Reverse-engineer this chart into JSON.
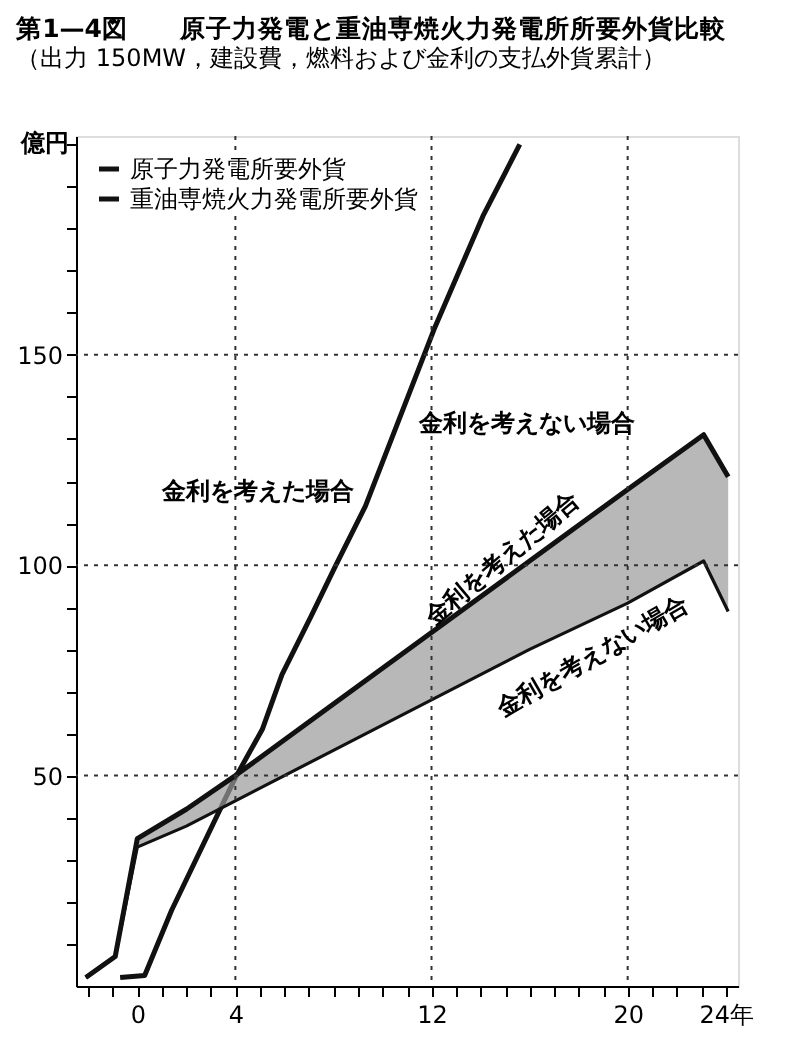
{
  "chart_data": {
    "type": "line",
    "title": "第1—4図　　原子力発電と重油専焼火力発電所所要外貨比較",
    "subtitle": "（出力 150MW，建設費，燃料および金利の支払外貨累計）",
    "ylabel": "億円",
    "xlim": [
      -2.5,
      24.5
    ],
    "ylim": [
      0,
      202
    ],
    "xticks": [
      {
        "value": -2,
        "label": null
      },
      {
        "value": -1,
        "label": null
      },
      0,
      {
        "value": 1,
        "label": null
      },
      {
        "value": 2,
        "label": null
      },
      {
        "value": 3,
        "label": null
      },
      4,
      {
        "value": 5,
        "label": null
      },
      {
        "value": 6,
        "label": null
      },
      {
        "value": 7,
        "label": null
      },
      {
        "value": 8,
        "label": null
      },
      {
        "value": 9,
        "label": null
      },
      {
        "value": 10,
        "label": null
      },
      {
        "value": 11,
        "label": null
      },
      12,
      {
        "value": 13,
        "label": null
      },
      {
        "value": 14,
        "label": null
      },
      {
        "value": 15,
        "label": null
      },
      {
        "value": 16,
        "label": null
      },
      {
        "value": 17,
        "label": null
      },
      {
        "value": 18,
        "label": null
      },
      {
        "value": 19,
        "label": null
      },
      20,
      {
        "value": 21,
        "label": null
      },
      {
        "value": 22,
        "label": null
      },
      {
        "value": 23,
        "label": null
      },
      {
        "value": 24,
        "label": "24年"
      }
    ],
    "yticks": [
      {
        "value": 10,
        "label": null
      },
      {
        "value": 20,
        "label": null
      },
      {
        "value": 30,
        "label": null
      },
      {
        "value": 40,
        "label": null
      },
      50,
      {
        "value": 60,
        "label": null
      },
      {
        "value": 70,
        "label": null
      },
      {
        "value": 80,
        "label": null
      },
      {
        "value": 90,
        "label": null
      },
      100,
      {
        "value": 110,
        "label": null
      },
      {
        "value": 120,
        "label": null
      },
      {
        "value": 130,
        "label": null
      },
      {
        "value": 140,
        "label": null
      },
      150,
      {
        "value": 160,
        "label": null
      },
      {
        "value": 170,
        "label": null
      },
      {
        "value": 180,
        "label": null
      },
      {
        "value": 190,
        "label": null
      },
      {
        "value": 200,
        "label": null
      }
    ],
    "series": [
      {
        "name": "原子力発電所要外貨",
        "color": "#111111",
        "x": [
          -0.7,
          0.3,
          1.4,
          4,
          5.1,
          5.9,
          7.1,
          8.1,
          9.3,
          12.1,
          14.1,
          15.6
        ],
        "values": [
          2,
          2.5,
          18,
          49.5,
          61,
          74,
          88,
          100,
          114,
          156,
          183,
          200
        ]
      },
      {
        "name": "重油専焼火力発電所要外貨",
        "color": "#111111",
        "x": [
          -2.1,
          -0.9,
          0,
          2,
          4,
          8,
          12,
          16,
          20,
          23.1,
          24.1
        ],
        "values": [
          2,
          7,
          35,
          42,
          50,
          67,
          84,
          101,
          118,
          131,
          121
        ],
        "lower": [
          2,
          7,
          33,
          38,
          44,
          56,
          68,
          80,
          91,
          101,
          89
        ],
        "upper": [
          2,
          7,
          35,
          42,
          50,
          67,
          84,
          101,
          118,
          131,
          121
        ]
      },
      {
        "color": "#111111",
        "x": [
          -2.1,
          -0.9,
          0,
          2,
          4,
          8,
          12,
          16,
          20,
          23.1,
          24.1
        ],
        "values": [
          2,
          7,
          33,
          38,
          44,
          56,
          68,
          80,
          91,
          101,
          89
        ]
      }
    ],
    "legend": "top left",
    "marker": "none",
    "line_style": "solid",
    "ref_lines": [
      {
        "axis": "x",
        "value": 4,
        "color": "#333333",
        "line_style": "dotted"
      },
      {
        "axis": "x",
        "value": 12,
        "color": "#333333",
        "line_style": "dotted"
      },
      {
        "axis": "x",
        "value": 20,
        "color": "#333333",
        "line_style": "dotted"
      },
      {
        "axis": "y",
        "value": 50,
        "color": "#333333",
        "line_style": "dotted"
      },
      {
        "axis": "y",
        "value": 100,
        "color": "#333333",
        "line_style": "dotted"
      },
      {
        "axis": "y",
        "value": 150,
        "color": "#333333",
        "line_style": "dotted"
      }
    ],
    "annotations": [
      {
        "text": "金利を考えた場合",
        "x": 9.5,
        "y": 119
      },
      {
        "text": "金利を考えない場合",
        "x": 10.5,
        "y": 132
      },
      {
        "text": "金利を考えた場合",
        "x": 15.4,
        "y": 98
      },
      {
        "text": "金利を考えない場合",
        "x": 17.9,
        "y": 85
      }
    ]
  }
}
